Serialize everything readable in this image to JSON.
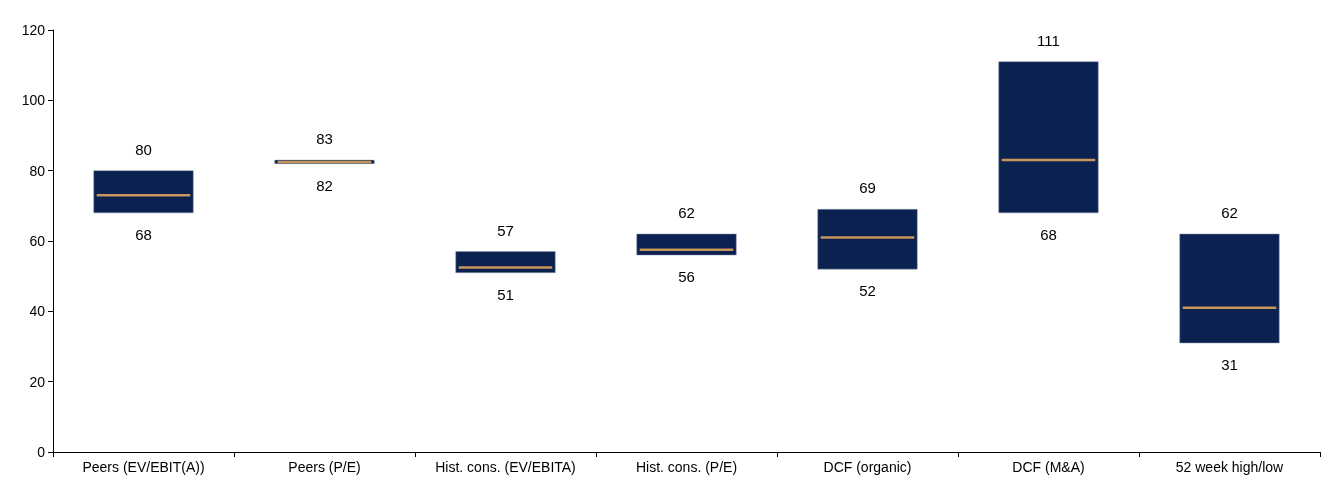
{
  "chart_data": {
    "type": "box",
    "categories": [
      "Peers (EV/EBIT(A))",
      "Peers (P/E)",
      "Hist. cons. (EV/EBITA)",
      "Hist. cons. (P/E)",
      "DCF (organic)",
      "DCF (M&A)",
      "52 week high/low"
    ],
    "series": [
      {
        "color": "#0b2250",
        "boxes": [
          {
            "low": 68,
            "q1": 68,
            "median": 73,
            "q3": 80,
            "high": 80
          },
          {
            "low": 82,
            "q1": 82,
            "median": 82.5,
            "q3": 83,
            "high": 83
          },
          {
            "low": 51,
            "q1": 51,
            "median": 52.5,
            "q3": 57,
            "high": 57
          },
          {
            "low": 56,
            "q1": 56,
            "median": 57.5,
            "q3": 62,
            "high": 62
          },
          {
            "low": 52,
            "q1": 52,
            "median": 61,
            "q3": 69,
            "high": 69
          },
          {
            "low": 68,
            "q1": 68,
            "median": 83,
            "q3": 111,
            "high": 111
          },
          {
            "low": 31,
            "q1": 31,
            "median": 41,
            "q3": 62,
            "high": 62
          }
        ]
      }
    ],
    "annotations": [
      {
        "text": "80",
        "x": "Peers (EV/EBIT(A))",
        "y": 80
      },
      {
        "text": "68",
        "x": "Peers (EV/EBIT(A))",
        "y": 68
      },
      {
        "text": "83",
        "x": "Peers (P/E)",
        "y": 83
      },
      {
        "text": "82",
        "x": "Peers (P/E)",
        "y": 82
      },
      {
        "text": "57",
        "x": "Hist. cons. (EV/EBITA)",
        "y": 57
      },
      {
        "text": "51",
        "x": "Hist. cons. (EV/EBITA)",
        "y": 51
      },
      {
        "text": "62",
        "x": "Hist. cons. (P/E)",
        "y": 62
      },
      {
        "text": "56",
        "x": "Hist. cons. (P/E)",
        "y": 56
      },
      {
        "text": "69",
        "x": "DCF (organic)",
        "y": 69
      },
      {
        "text": "52",
        "x": "DCF (organic)",
        "y": 52
      },
      {
        "text": "111",
        "x": "DCF (M&A)",
        "y": 111
      },
      {
        "text": "68",
        "x": "DCF (M&A)",
        "y": 68
      },
      {
        "text": "62",
        "x": "52 week high/low",
        "y": 62
      },
      {
        "text": "31",
        "x": "52 week high/low",
        "y": 31
      }
    ],
    "ylim": [
      0,
      120
    ],
    "yticks": [
      0,
      20,
      40,
      60,
      80,
      100,
      120
    ],
    "grid": false
  }
}
